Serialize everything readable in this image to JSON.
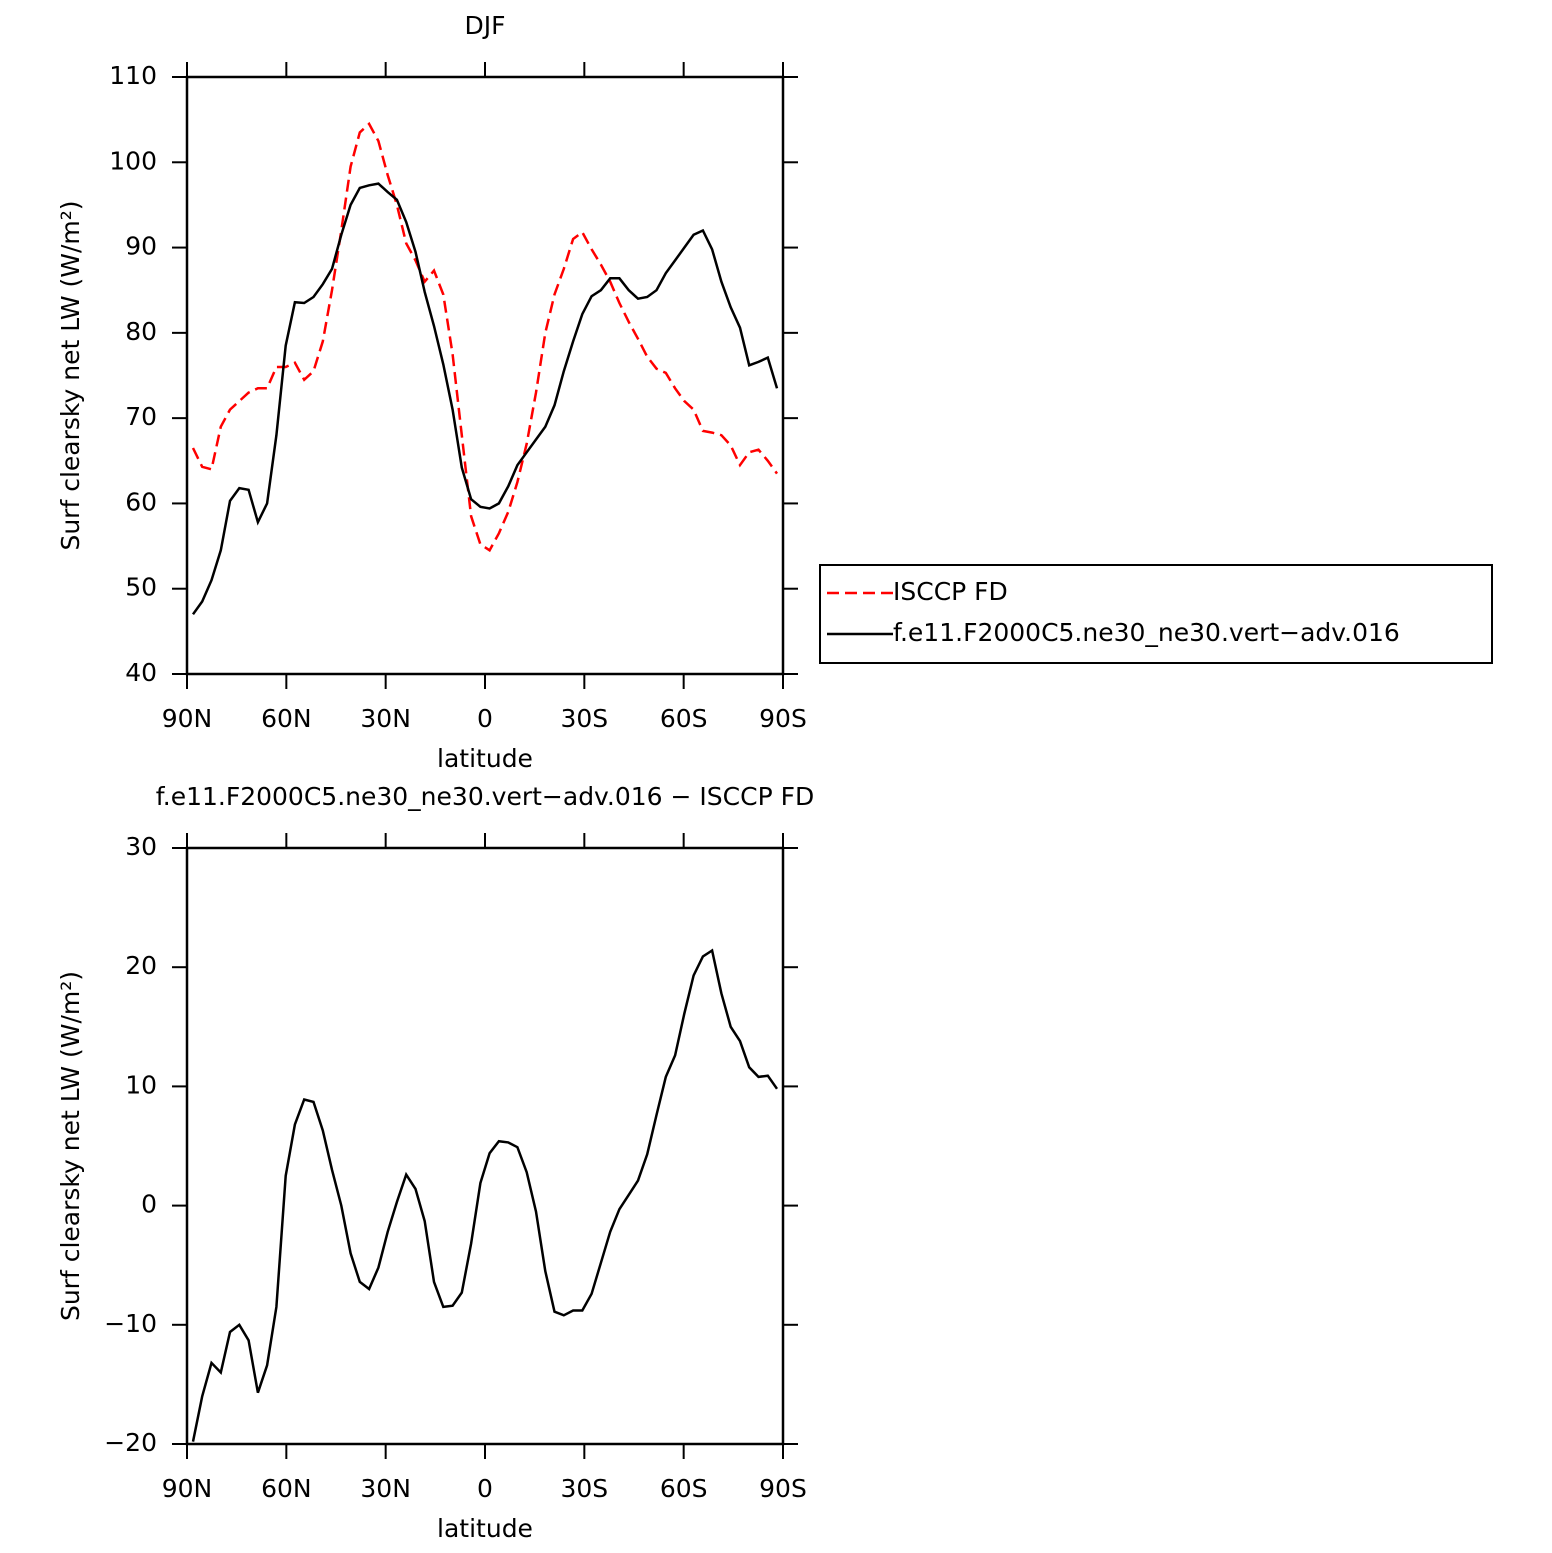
{
  "chart_data": [
    {
      "type": "line",
      "title": "DJF",
      "xlabel": "latitude",
      "ylabel": "Surf clearsky net LW (W/m²)",
      "x": [
        88.2,
        85.4,
        82.6,
        79.8,
        77,
        74.2,
        71.4,
        68.6,
        65.8,
        63,
        60.2,
        57.4,
        54.6,
        51.8,
        49,
        46.2,
        43.4,
        40.6,
        37.8,
        35,
        32.2,
        29.4,
        26.6,
        23.8,
        21,
        18.2,
        15.4,
        12.6,
        9.8,
        7,
        4.2,
        1.4,
        -1.4,
        -4.2,
        -7,
        -9.8,
        -12.6,
        -15.4,
        -18.2,
        -21,
        -23.8,
        -26.6,
        -29.4,
        -32.2,
        -35,
        -37.8,
        -40.6,
        -43.4,
        -46.2,
        -49,
        -51.8,
        -54.6,
        -57.4,
        -60.2,
        -63,
        -65.8,
        -68.6,
        -71.4,
        -74.2,
        -77,
        -79.8,
        -82.6,
        -85.4,
        -88.2
      ],
      "series": [
        {
          "name": "ISCCP FD",
          "color": "#ff0000",
          "dashed": true,
          "values": [
            66.5,
            64.3,
            64,
            69,
            71,
            72,
            73,
            73.5,
            73.5,
            76,
            76,
            76.5,
            74.5,
            75.5,
            79,
            85,
            92,
            99.5,
            103.5,
            104.5,
            102.5,
            98.5,
            95,
            90.5,
            88.5,
            86,
            87.3,
            84.5,
            77.5,
            68,
            58.5,
            55.2,
            54.5,
            56.5,
            59,
            62.5,
            67,
            73,
            80,
            84.5,
            87.5,
            91,
            91.8,
            89.8,
            88,
            86,
            83.5,
            81.3,
            79.3,
            77.2,
            75.8,
            75.3,
            73.5,
            72,
            71,
            68.5,
            68.3,
            68,
            66.8,
            64.5,
            66,
            66.3,
            65,
            63.5
          ]
        },
        {
          "name": "f.e11.F2000C5.ne30_ne30.vert−adv.016",
          "color": "#000000",
          "dashed": false,
          "values": [
            47,
            48.5,
            51,
            54.5,
            60.3,
            61.8,
            61.6,
            57.8,
            60,
            68,
            78.5,
            83.6,
            83.5,
            84.2,
            85.7,
            87.5,
            91.5,
            95,
            97,
            97.3,
            97.5,
            96.5,
            95.6,
            93,
            89.5,
            84.8,
            80.8,
            76.3,
            71,
            64.2,
            60.5,
            59.6,
            59.4,
            60,
            62,
            64.5,
            66,
            67.5,
            69,
            71.5,
            75.5,
            79,
            82.2,
            84.3,
            85,
            86.4,
            86.4,
            85,
            84,
            84.2,
            85,
            87,
            88.5,
            90,
            91.5,
            92,
            89.8,
            86,
            83,
            80.6,
            76.2,
            76.6,
            77.1,
            73.5
          ]
        }
      ],
      "xlim": [
        90,
        -90
      ],
      "xticks": [
        {
          "value": 90,
          "label": "90N"
        },
        {
          "value": 60,
          "label": "60N"
        },
        {
          "value": 30,
          "label": "30N"
        },
        0,
        {
          "value": -30,
          "label": "30S"
        },
        {
          "value": -60,
          "label": "60S"
        },
        {
          "value": -90,
          "label": "90S"
        }
      ],
      "ylim": [
        40,
        110
      ],
      "yticks": [
        40,
        50,
        60,
        70,
        80,
        90,
        100,
        110
      ],
      "legend": "right"
    },
    {
      "type": "line",
      "title": "f.e11.F2000C5.ne30_ne30.vert−adv.016 − ISCCP FD",
      "xlabel": "latitude",
      "ylabel": "Surf clearsky net LW (W/m²)",
      "x": [
        88.2,
        85.4,
        82.6,
        79.8,
        77,
        74.2,
        71.4,
        68.6,
        65.8,
        63,
        60.2,
        57.4,
        54.6,
        51.8,
        49,
        46.2,
        43.4,
        40.6,
        37.8,
        35,
        32.2,
        29.4,
        26.6,
        23.8,
        21,
        18.2,
        15.4,
        12.6,
        9.8,
        7,
        4.2,
        1.4,
        -1.4,
        -4.2,
        -7,
        -9.8,
        -12.6,
        -15.4,
        -18.2,
        -21,
        -23.8,
        -26.6,
        -29.4,
        -32.2,
        -35,
        -37.8,
        -40.6,
        -43.4,
        -46.2,
        -49,
        -51.8,
        -54.6,
        -57.4,
        -60.2,
        -63,
        -65.8,
        -68.6,
        -71.4,
        -74.2,
        -77,
        -79.8,
        -82.6,
        -85.4,
        -88.2
      ],
      "color": "#000000",
      "values": [
        -19.8,
        -16,
        -13.2,
        -14,
        -10.6,
        -10,
        -11.3,
        -15.7,
        -13.4,
        -8.5,
        2.5,
        6.8,
        8.9,
        8.7,
        6.3,
        3,
        0,
        -4,
        -6.4,
        -7,
        -5.2,
        -2.2,
        0.3,
        2.6,
        1.4,
        -1.3,
        -6.4,
        -8.5,
        -8.4,
        -7.3,
        -3.2,
        1.9,
        4.4,
        5.4,
        5.3,
        4.9,
        2.8,
        -0.5,
        -5.5,
        -8.9,
        -9.2,
        -8.8,
        -8.8,
        -7.4,
        -4.8,
        -2.2,
        -0.3,
        0.9,
        2.1,
        4.3,
        7.6,
        10.8,
        12.6,
        16.1,
        19.3,
        20.9,
        21.4,
        17.8,
        15,
        13.8,
        11.6,
        10.8,
        10.9,
        9.8
      ],
      "xlim": [
        90,
        -90
      ],
      "xticks": [
        {
          "value": 90,
          "label": "90N"
        },
        {
          "value": 60,
          "label": "60N"
        },
        {
          "value": 30,
          "label": "30N"
        },
        0,
        {
          "value": -30,
          "label": "30S"
        },
        {
          "value": -60,
          "label": "60S"
        },
        {
          "value": -90,
          "label": "90S"
        }
      ],
      "ylim": [
        -20,
        30
      ],
      "yticks": [
        {
          "value": -20,
          "label": "−20"
        },
        {
          "value": -10,
          "label": "−10"
        },
        0,
        10,
        20,
        30
      ]
    }
  ]
}
